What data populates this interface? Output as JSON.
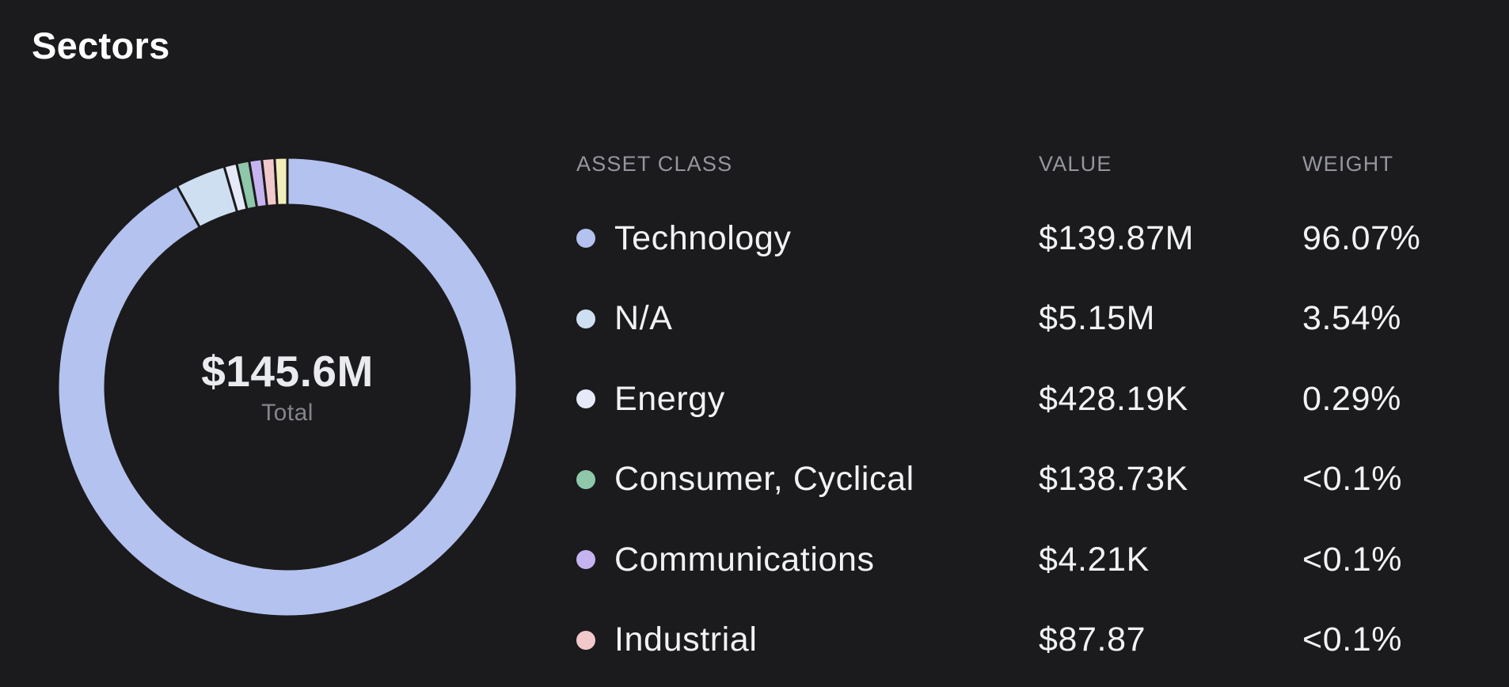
{
  "page": {
    "title": "Sectors"
  },
  "table": {
    "headers": {
      "asset_class": "ASSET CLASS",
      "value": "VALUE",
      "weight": "WEIGHT"
    }
  },
  "chart_data": {
    "type": "donut",
    "title": "Sectors",
    "center_label": {
      "value": "$145.6M",
      "caption": "Total"
    },
    "legend_position": "right-table",
    "colors": {
      "background": "#1b1b1d",
      "header_text": "#95969e",
      "row_text": "#f1f2f4",
      "center_value_text": "#e9ebef",
      "center_caption_text": "#84858c"
    },
    "segments": [
      {
        "label": "Technology",
        "value": "$139.87M",
        "weight": "96.07%",
        "weight_pct": 96.07,
        "color": "#b4c2ef"
      },
      {
        "label": "N/A",
        "value": "$5.15M",
        "weight": "3.54%",
        "weight_pct": 3.54,
        "color": "#cfdff2"
      },
      {
        "label": "Energy",
        "value": "$428.19K",
        "weight": "0.29%",
        "weight_pct": 0.29,
        "color": "#e6e9f7"
      },
      {
        "label": "Consumer, Cyclical",
        "value": "$138.73K",
        "weight": "<0.1%",
        "weight_pct": 0.09,
        "color": "#8ec7a9"
      },
      {
        "label": "Communications",
        "value": "$4.21K",
        "weight": "<0.1%",
        "weight_pct": 0.003,
        "color": "#c5b4ef"
      },
      {
        "label": "Industrial",
        "value": "$87.87",
        "weight": "<0.1%",
        "weight_pct": 0.0001,
        "color": "#f1c9ca"
      },
      {
        "label": "",
        "value": "",
        "weight": "",
        "weight_pct": 0.0001,
        "color": "#f2eebb"
      }
    ]
  }
}
